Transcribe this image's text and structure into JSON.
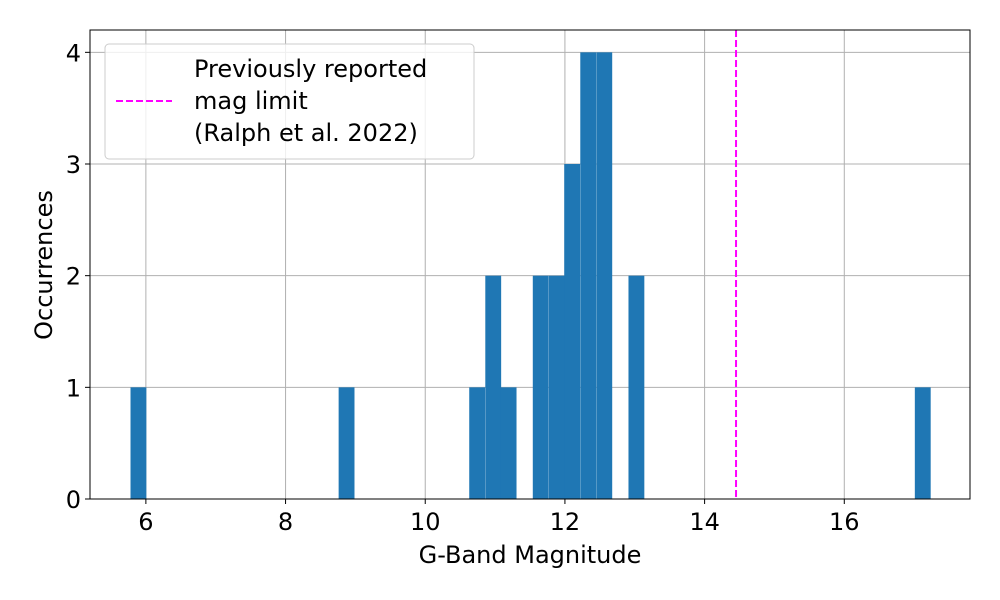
{
  "chart_data": {
    "type": "bar",
    "xlabel": "G-Band Magnitude",
    "ylabel": "Occurrences",
    "xlim": [
      5.2,
      17.8
    ],
    "ylim": [
      0,
      4.2
    ],
    "xticks": [
      6,
      8,
      10,
      12,
      14,
      16
    ],
    "yticks": [
      0,
      1,
      2,
      3,
      4
    ],
    "grid": true,
    "bin_width": 0.227,
    "bins": [
      {
        "x0": 5.78,
        "count": 1
      },
      {
        "x0": 8.76,
        "count": 1
      },
      {
        "x0": 10.63,
        "count": 1
      },
      {
        "x0": 10.86,
        "count": 2
      },
      {
        "x0": 11.08,
        "count": 1
      },
      {
        "x0": 11.54,
        "count": 2
      },
      {
        "x0": 11.77,
        "count": 2
      },
      {
        "x0": 11.99,
        "count": 3
      },
      {
        "x0": 12.22,
        "count": 4
      },
      {
        "x0": 12.45,
        "count": 4
      },
      {
        "x0": 12.91,
        "count": 2
      },
      {
        "x0": 17.01,
        "count": 1
      }
    ],
    "bar_color": "#1f77b4",
    "reference_line": {
      "x": 14.45,
      "color": "#ff00ff",
      "style": "dashed",
      "legend_lines": [
        "Previously reported",
        "mag limit",
        "(Ralph et al. 2022)"
      ]
    },
    "legend_placement": "top-left"
  }
}
